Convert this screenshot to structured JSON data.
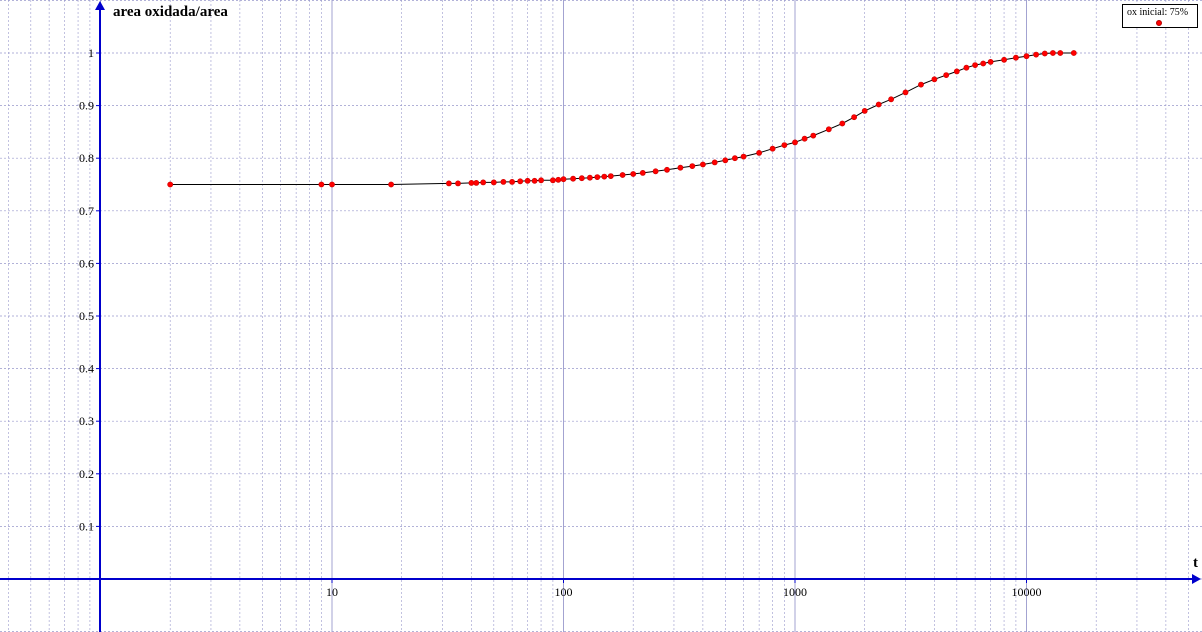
{
  "chart_data": {
    "type": "line",
    "title": "",
    "xlabel": "t",
    "ylabel": "area oxidada/area",
    "x_scale": "log",
    "xlim": [
      0.2,
      50000
    ],
    "ylim": [
      -0.09,
      1.1
    ],
    "x_ticks": [
      10,
      100,
      1000,
      10000
    ],
    "x_tick_labels": [
      "10",
      "100",
      "1000",
      "10000"
    ],
    "y_ticks": [
      0.1,
      0.2,
      0.3,
      0.4,
      0.5,
      0.6,
      0.7,
      0.8,
      0.9,
      1
    ],
    "y_tick_labels": [
      "0.1",
      "0.2",
      "0.3",
      "0.4",
      "0.5",
      "0.6",
      "0.7",
      "0.8",
      "0.9",
      "1"
    ],
    "grid": true,
    "legend_position": "top-right",
    "colors": {
      "series": "#ff0000",
      "line": "#000000",
      "axis": "#0000cc",
      "grid": "#9999cc"
    },
    "series": [
      {
        "name": "ox inicial: 75%",
        "x": [
          2,
          9,
          10,
          18,
          32,
          35,
          40,
          42,
          45,
          50,
          55,
          60,
          65,
          70,
          75,
          80,
          90,
          95,
          100,
          110,
          120,
          130,
          140,
          150,
          160,
          180,
          200,
          220,
          250,
          280,
          320,
          360,
          400,
          450,
          500,
          550,
          600,
          700,
          800,
          900,
          1000,
          1100,
          1200,
          1400,
          1600,
          1800,
          2000,
          2300,
          2600,
          3000,
          3500,
          4000,
          4500,
          5000,
          5500,
          6000,
          6500,
          7000,
          8000,
          9000,
          10000,
          11000,
          12000,
          13000,
          14000,
          16000
        ],
        "y": [
          0.75,
          0.75,
          0.75,
          0.75,
          0.752,
          0.752,
          0.753,
          0.753,
          0.754,
          0.754,
          0.755,
          0.755,
          0.756,
          0.757,
          0.757,
          0.758,
          0.758,
          0.759,
          0.76,
          0.761,
          0.762,
          0.763,
          0.764,
          0.765,
          0.766,
          0.768,
          0.77,
          0.772,
          0.775,
          0.778,
          0.782,
          0.785,
          0.788,
          0.792,
          0.796,
          0.8,
          0.803,
          0.81,
          0.818,
          0.825,
          0.83,
          0.837,
          0.843,
          0.855,
          0.866,
          0.878,
          0.89,
          0.902,
          0.912,
          0.925,
          0.94,
          0.95,
          0.958,
          0.965,
          0.972,
          0.977,
          0.98,
          0.983,
          0.987,
          0.991,
          0.994,
          0.997,
          0.999,
          1.0,
          1.0,
          1.0
        ]
      }
    ]
  }
}
